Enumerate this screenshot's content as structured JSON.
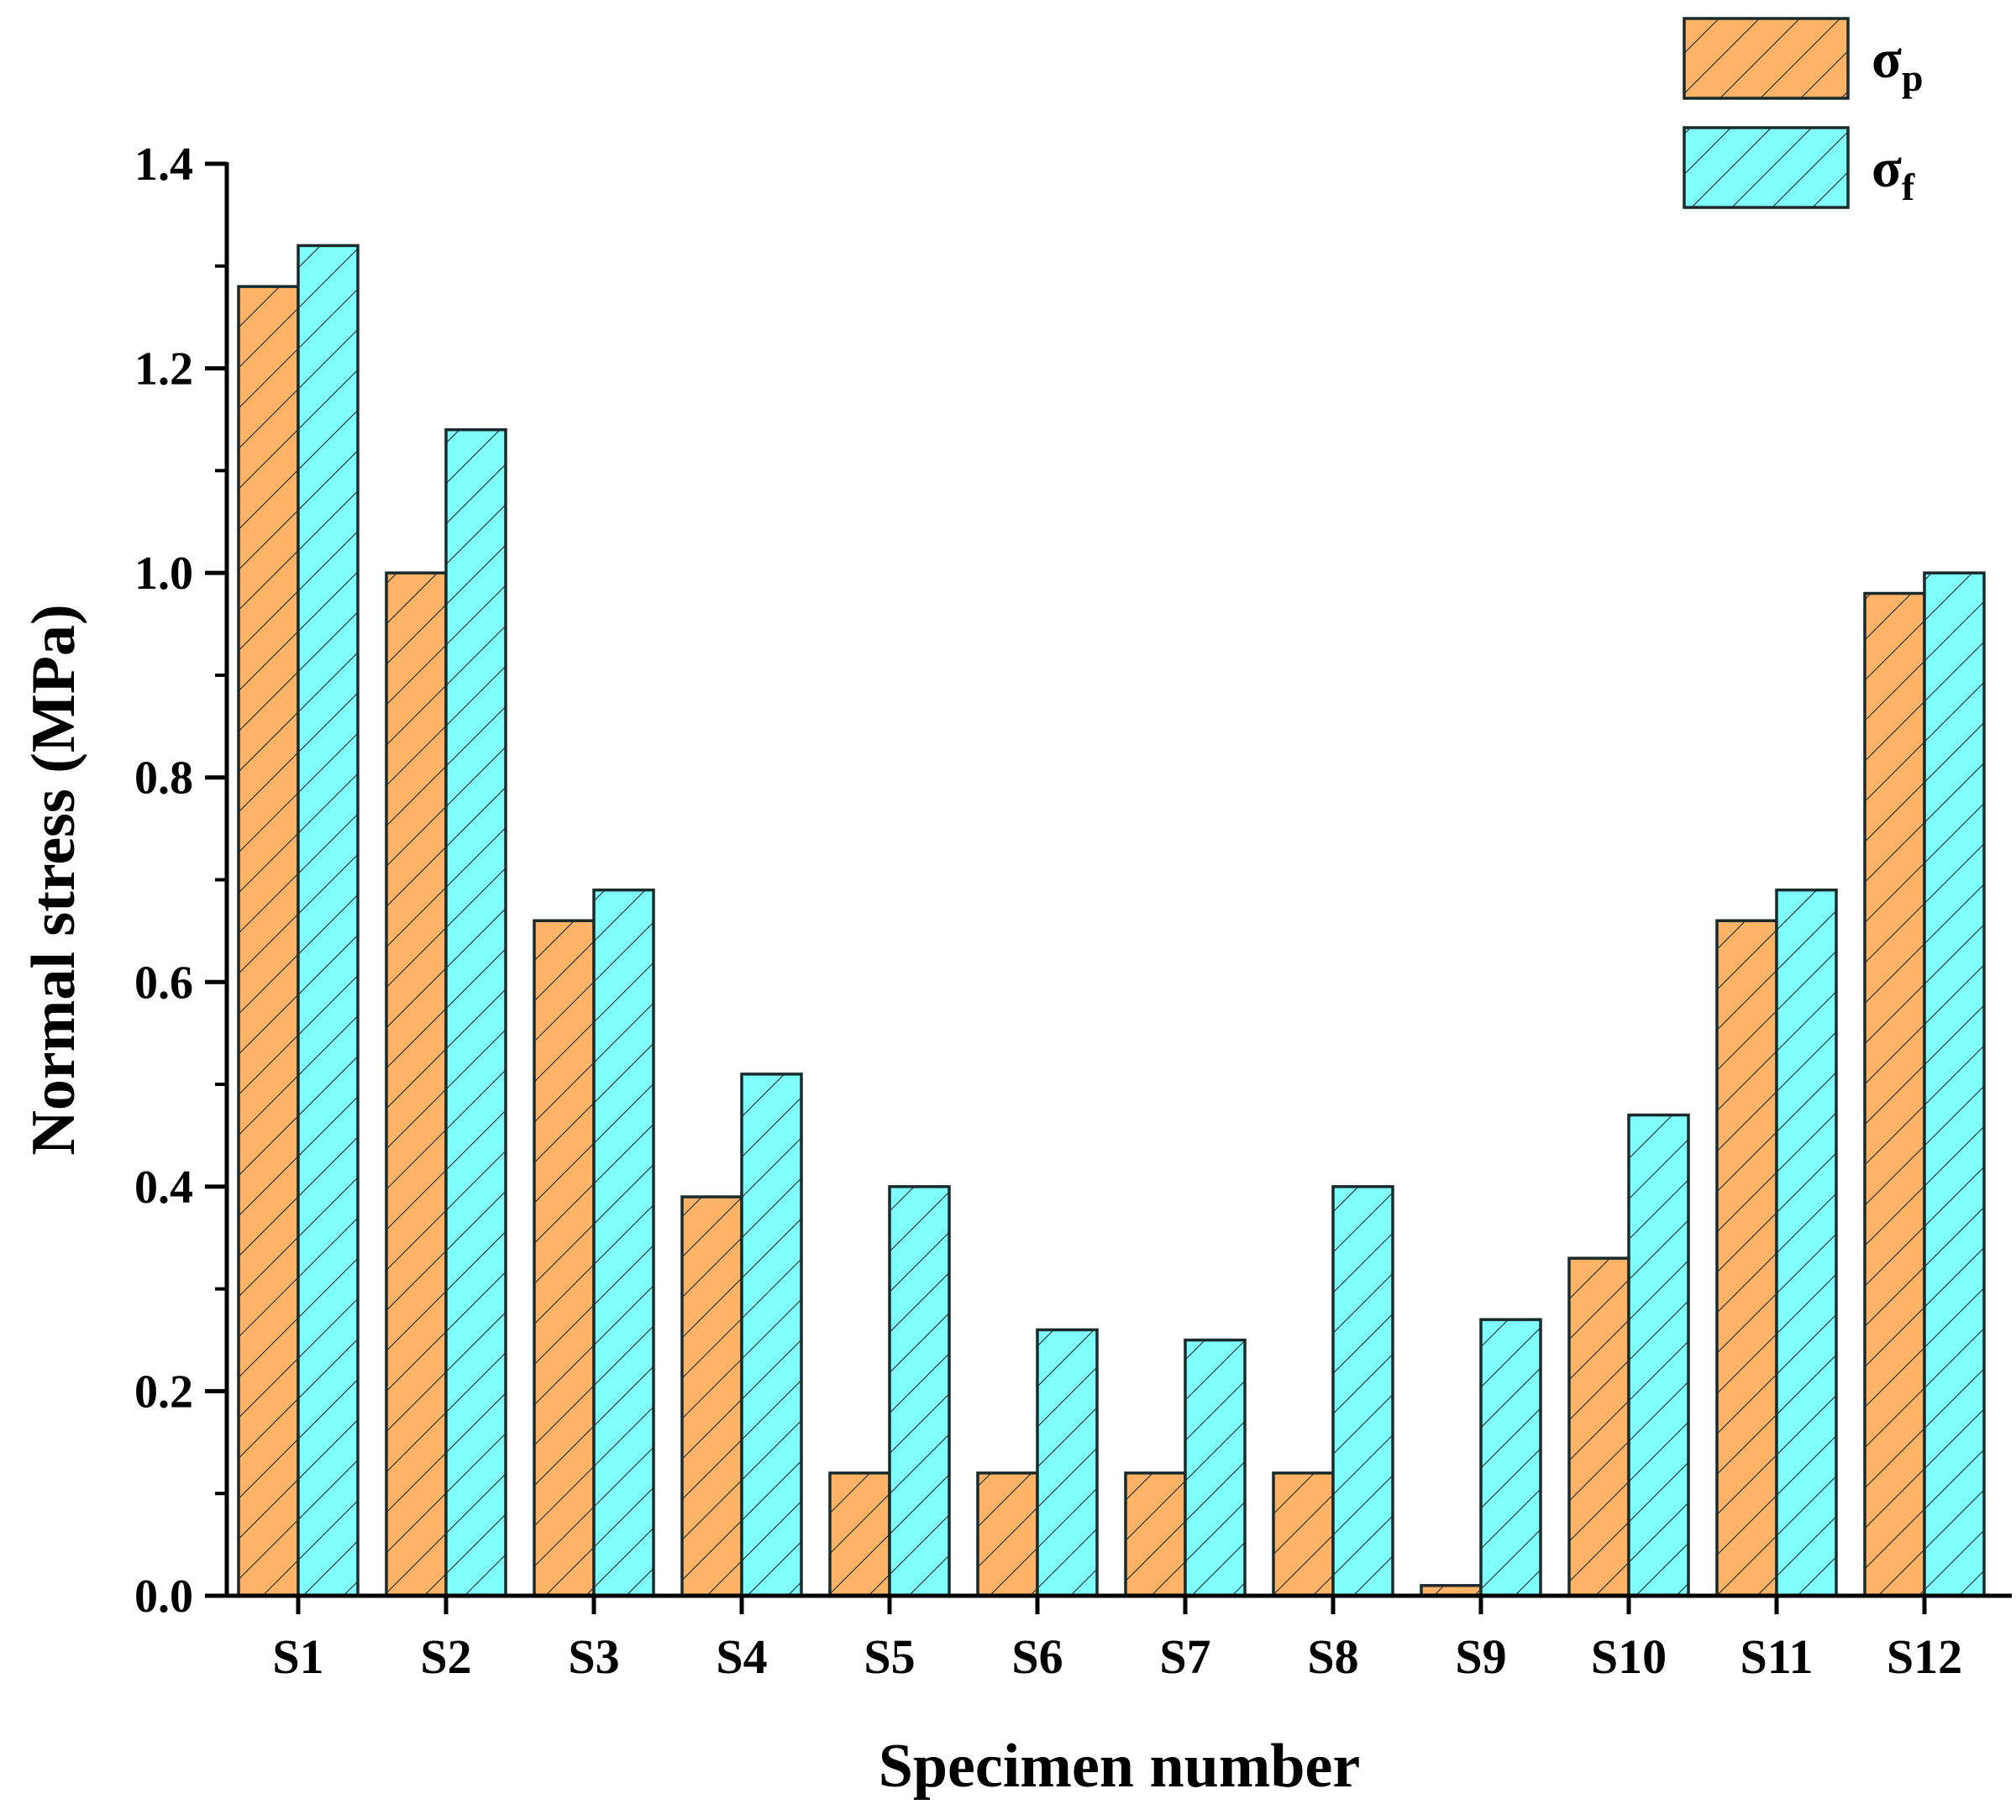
{
  "chart_data": {
    "type": "bar",
    "title": "",
    "xlabel": "Specimen number",
    "ylabel": "Normal stress (MPa)",
    "ylim": [
      0,
      1.4
    ],
    "yticks": [
      "0.0",
      "0.2",
      "0.4",
      "0.6",
      "0.8",
      "1.0",
      "1.2",
      "1.4"
    ],
    "categories": [
      "S1",
      "S2",
      "S3",
      "S4",
      "S5",
      "S6",
      "S7",
      "S8",
      "S9",
      "S10",
      "S11",
      "S12"
    ],
    "series": [
      {
        "name": "σp",
        "symbol": "σ",
        "subscript": "p",
        "color": "#ffb366",
        "values": [
          1.28,
          1.0,
          0.66,
          0.39,
          0.12,
          0.12,
          0.12,
          0.12,
          0.01,
          0.33,
          0.66,
          0.98
        ]
      },
      {
        "name": "σf",
        "symbol": "σ",
        "subscript": "f",
        "color": "#80ffff",
        "values": [
          1.32,
          1.14,
          0.69,
          0.51,
          0.4,
          0.26,
          0.25,
          0.4,
          0.27,
          0.47,
          0.69,
          1.0
        ]
      }
    ],
    "legend_position": "top-right",
    "hatch": "diagonal",
    "edge_color": "#1a2a2a"
  }
}
